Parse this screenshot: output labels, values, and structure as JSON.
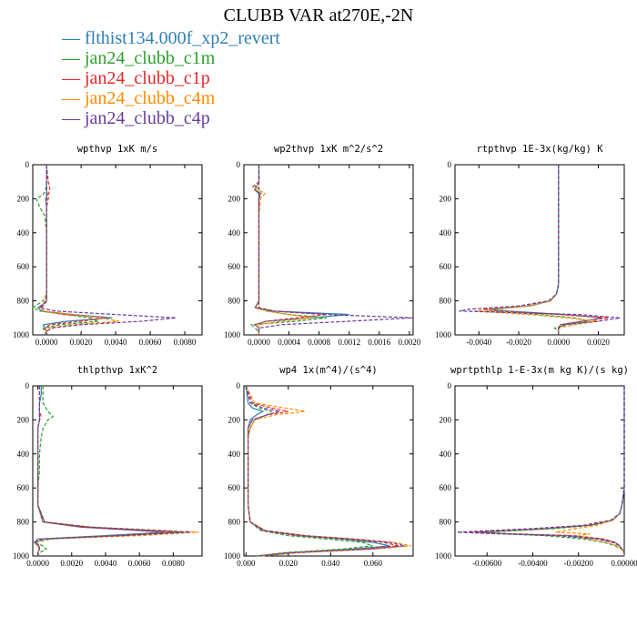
{
  "title": "CLUBB VAR at270E,-2N",
  "legend": [
    {
      "label": "flthist134.000f_xp2_revert",
      "color": "#2f7fb5"
    },
    {
      "label": "jan24_clubb_c1m",
      "color": "#2ca02c"
    },
    {
      "label": "jan24_clubb_c1p",
      "color": "#e8262a"
    },
    {
      "label": "jan24_clubb_c4m",
      "color": "#ff8c00"
    },
    {
      "label": "jan24_clubb_c4p",
      "color": "#6a3d9a"
    }
  ],
  "chart_data": [
    {
      "type": "line",
      "title": "wpthvp  1xK m/s",
      "xlim": [
        -0.0008,
        0.009
      ],
      "ylim": [
        1000,
        0
      ],
      "xticks": [
        "0.0000",
        "0.0020",
        "0.0040",
        "0.0060",
        "0.0080"
      ],
      "yticks": [
        "0",
        "200",
        "400",
        "600",
        "800",
        "1000"
      ],
      "y": [
        0,
        100,
        150,
        175,
        200,
        250,
        300,
        400,
        500,
        600,
        700,
        760,
        800,
        820,
        840,
        860,
        880,
        900,
        920,
        940,
        960,
        980,
        1000
      ],
      "series": [
        {
          "color": "#2f7fb5",
          "solid": true,
          "values": [
            0,
            0,
            0,
            5e-05,
            -5e-05,
            0,
            0,
            0,
            0,
            0,
            0,
            0,
            0,
            -0.0002,
            -0.0005,
            -0.0003,
            0.0015,
            0.0038,
            0.0012,
            -0.0002,
            -0.0001,
            0,
            0
          ]
        },
        {
          "color": "#2ca02c",
          "solid": false,
          "values": [
            0,
            0,
            -5e-05,
            -0.0002,
            -0.0006,
            -0.0004,
            -0.0001,
            0,
            0,
            0,
            0,
            0,
            -0.0002,
            -0.0005,
            -0.0008,
            -0.0004,
            0.0012,
            0.0025,
            0.003,
            0.0008,
            -0.0002,
            -0.0001,
            0
          ]
        },
        {
          "color": "#e8262a",
          "solid": false,
          "values": [
            0,
            0.0001,
            0.0002,
            0.0001,
            0.0001,
            0,
            0,
            0,
            0,
            0,
            0,
            0,
            0,
            -0.0001,
            -0.0003,
            -0.0002,
            0.001,
            0.0034,
            0.002,
            0.0002,
            -0.0001,
            0,
            0
          ]
        },
        {
          "color": "#ff8c00",
          "solid": false,
          "values": [
            0,
            0,
            0,
            0,
            0,
            0,
            0,
            0,
            0,
            0,
            0,
            0,
            -0.0001,
            -0.0002,
            -0.0004,
            -0.0002,
            0.0015,
            0.0031,
            0.0042,
            0.0015,
            0.0001,
            0,
            0
          ]
        },
        {
          "color": "#6a3d9a",
          "solid": false,
          "values": [
            0,
            0,
            0,
            0,
            0,
            0,
            0,
            0,
            0,
            0,
            0,
            0,
            0,
            -0.0002,
            -0.0004,
            0.0005,
            0.004,
            0.0075,
            0.0055,
            0.002,
            0.0003,
            0,
            0
          ]
        }
      ]
    },
    {
      "type": "line",
      "title": "wp2thvp  1xK m^2/s^2",
      "xlim": [
        -0.0002,
        0.00205
      ],
      "ylim": [
        1000,
        0
      ],
      "xticks": [
        "0.0000",
        "0.0004",
        "0.0008",
        "0.0012",
        "0.0016",
        "0.0020"
      ],
      "yticks": [
        "0",
        "200",
        "400",
        "600",
        "800",
        "1000"
      ],
      "y": [
        0,
        100,
        130,
        150,
        170,
        200,
        300,
        400,
        500,
        600,
        700,
        800,
        840,
        860,
        880,
        900,
        920,
        940,
        960,
        980,
        1000
      ],
      "series": [
        {
          "color": "#2f7fb5",
          "solid": true,
          "values": [
            0,
            0,
            -3e-05,
            -5e-05,
            0,
            0,
            0,
            0,
            0,
            0,
            0,
            0,
            -5e-05,
            0.0002,
            0.0012,
            0.0007,
            0.0001,
            -5e-05,
            0,
            0,
            0
          ]
        },
        {
          "color": "#2ca02c",
          "solid": false,
          "values": [
            0,
            0,
            -5e-05,
            -3e-05,
            2e-05,
            0,
            0,
            0,
            0,
            0,
            0,
            0,
            -5e-05,
            0.0001,
            0.0004,
            0.0009,
            0.0005,
            -0.0001,
            -5e-05,
            0,
            0
          ]
        },
        {
          "color": "#e8262a",
          "solid": false,
          "values": [
            0,
            0,
            -8e-05,
            -5e-05,
            3e-05,
            0,
            0,
            0,
            0,
            0,
            0,
            0,
            -5e-05,
            0.00015,
            0.0009,
            0.0005,
            0.0001,
            -5e-05,
            0,
            0,
            0
          ]
        },
        {
          "color": "#ff8c00",
          "solid": false,
          "values": [
            0,
            0,
            -3e-05,
            0,
            8e-05,
            2e-05,
            0,
            0,
            0,
            0,
            0,
            0,
            0,
            0.0001,
            0.0004,
            0.0007,
            0.0003,
            0,
            0,
            0,
            0
          ]
        },
        {
          "color": "#6a3d9a",
          "solid": false,
          "values": [
            0,
            0,
            0,
            0,
            0,
            0,
            0,
            0,
            0,
            0,
            0,
            0,
            0,
            0.0002,
            0.0009,
            0.00205,
            0.0012,
            0.0003,
            0,
            0,
            0
          ]
        }
      ]
    },
    {
      "type": "line",
      "title": "rtpthvp  1E-3x(kg/kg) K",
      "xlim": [
        -0.0052,
        0.0033
      ],
      "ylim": [
        1000,
        0
      ],
      "xticks": [
        "-0.0040",
        "-0.0020",
        "0.0000",
        "0.0020"
      ],
      "yticks": [
        "0",
        "200",
        "400",
        "600",
        "800",
        "1000"
      ],
      "y": [
        0,
        200,
        400,
        600,
        700,
        760,
        800,
        830,
        850,
        860,
        880,
        900,
        920,
        940,
        960,
        980,
        1000
      ],
      "series": [
        {
          "color": "#2f7fb5",
          "solid": true,
          "values": [
            0,
            0,
            0,
            0,
            0,
            -0.0001,
            -0.0004,
            -0.0015,
            -0.0035,
            -0.0025,
            0.0003,
            0.0022,
            0.0012,
            0.0001,
            0,
            0,
            0
          ]
        },
        {
          "color": "#2ca02c",
          "solid": false,
          "values": [
            0,
            0,
            0,
            0,
            0,
            -0.0001,
            -0.0004,
            -0.0014,
            -0.0032,
            -0.0036,
            -0.001,
            0.0008,
            0.0015,
            0.0004,
            -0.0002,
            0,
            0
          ]
        },
        {
          "color": "#e8262a",
          "solid": false,
          "values": [
            0,
            0,
            0,
            0,
            0,
            -0.0001,
            -0.0004,
            -0.0016,
            -0.0038,
            -0.003,
            0,
            0.0025,
            0.0012,
            0.0001,
            0,
            0,
            0
          ]
        },
        {
          "color": "#ff8c00",
          "solid": false,
          "values": [
            0,
            0,
            0,
            0,
            0,
            -0.0001,
            -0.0004,
            -0.0015,
            -0.0033,
            -0.0042,
            -0.0015,
            0.0005,
            0.002,
            0.0008,
            0,
            0,
            0
          ]
        },
        {
          "color": "#6a3d9a",
          "solid": false,
          "values": [
            0,
            0,
            0,
            0,
            0,
            -0.0001,
            -0.0005,
            -0.002,
            -0.0045,
            -0.005,
            0.001,
            0.0031,
            0.002,
            0.0003,
            0,
            0,
            0
          ]
        }
      ]
    },
    {
      "type": "line",
      "title": "thlpthvp  1xK^2",
      "xlim": [
        -0.0003,
        0.0097
      ],
      "ylim": [
        1000,
        0
      ],
      "xticks": [
        "0.0000",
        "0.0020",
        "0.0040",
        "0.0060",
        "0.0080"
      ],
      "yticks": [
        "0",
        "200",
        "400",
        "600",
        "800",
        "1000"
      ],
      "y": [
        0,
        50,
        100,
        150,
        180,
        200,
        250,
        300,
        400,
        500,
        600,
        700,
        800,
        830,
        860,
        880,
        900,
        920,
        940,
        960,
        980,
        1000
      ],
      "series": [
        {
          "color": "#2f7fb5",
          "solid": true,
          "values": [
            0.0002,
            0.0002,
            0.0001,
            0.0001,
            0.0001,
            0.0001,
            0,
            0,
            0,
            0,
            0,
            0,
            0.0003,
            0.0025,
            0.0075,
            0.004,
            0,
            -0.0002,
            0,
            0.0001,
            0,
            0
          ]
        },
        {
          "color": "#2ca02c",
          "solid": false,
          "values": [
            0.0003,
            0.0003,
            0.0003,
            0.0006,
            0.0009,
            0.0006,
            0.0003,
            0.0002,
            0.0001,
            0.0001,
            0,
            0,
            0.0004,
            0.003,
            0.0085,
            0.005,
            0.0008,
            -0.0002,
            0.0003,
            0.0005,
            0.0001,
            0
          ]
        },
        {
          "color": "#e8262a",
          "solid": false,
          "values": [
            0.0001,
            0.0001,
            0.0001,
            0.0001,
            0.0002,
            0.0001,
            0,
            0,
            0,
            0,
            0,
            0,
            0.0003,
            0.0025,
            0.008,
            0.0045,
            0.0002,
            -0.0002,
            0.0001,
            0.0001,
            0,
            0
          ]
        },
        {
          "color": "#ff8c00",
          "solid": false,
          "values": [
            0.0001,
            0.0001,
            0.0001,
            0.0001,
            0.0001,
            0.0001,
            0,
            0,
            0,
            0,
            0,
            0,
            0.0004,
            0.0032,
            0.0095,
            0.006,
            0.0005,
            -0.0002,
            0,
            0.0001,
            0,
            0
          ]
        },
        {
          "color": "#6a3d9a",
          "solid": false,
          "values": [
            0.0001,
            0.0001,
            0.0001,
            0.0001,
            0.0001,
            0.0001,
            0,
            0,
            0,
            0,
            0,
            0,
            0.0004,
            0.003,
            0.009,
            0.005,
            0.0003,
            -0.0002,
            0.0001,
            0.0001,
            0,
            0
          ]
        }
      ]
    },
    {
      "type": "line",
      "title": "wp4  1x(m^4)/(s^4)",
      "xlim": [
        -0.001,
        0.079
      ],
      "ylim": [
        1000,
        0
      ],
      "xticks": [
        "0.000",
        "0.020",
        "0.040",
        "0.060"
      ],
      "yticks": [
        "0",
        "200",
        "400",
        "600",
        "800",
        "1000"
      ],
      "y": [
        0,
        100,
        130,
        150,
        170,
        200,
        250,
        300,
        400,
        500,
        600,
        620,
        650,
        700,
        800,
        850,
        880,
        900,
        920,
        940,
        960,
        980,
        1000
      ],
      "series": [
        {
          "color": "#2f7fb5",
          "solid": true,
          "values": [
            0,
            0.001,
            0.003,
            0.008,
            0.005,
            0.002,
            0.001,
            0.001,
            0.001,
            0.001,
            0.001,
            0.001,
            0.001,
            0.001,
            0.002,
            0.008,
            0.025,
            0.045,
            0.06,
            0.068,
            0.05,
            0.02,
            0.005
          ]
        },
        {
          "color": "#2ca02c",
          "solid": false,
          "values": [
            0,
            0.002,
            0.006,
            0.012,
            0.01,
            0.004,
            0.002,
            0.001,
            0.001,
            0.001,
            0.001,
            0.001,
            0.001,
            0.001,
            0.002,
            0.007,
            0.02,
            0.038,
            0.055,
            0.06,
            0.045,
            0.018,
            0.005
          ]
        },
        {
          "color": "#e8262a",
          "solid": false,
          "values": [
            0,
            0.003,
            0.012,
            0.02,
            0.01,
            0.003,
            0.001,
            0.001,
            0.001,
            0.001,
            0.001,
            0.001,
            0.001,
            0.001,
            0.002,
            0.008,
            0.025,
            0.048,
            0.065,
            0.072,
            0.055,
            0.022,
            0.006
          ]
        },
        {
          "color": "#ff8c00",
          "solid": false,
          "values": [
            0,
            0.004,
            0.018,
            0.028,
            0.014,
            0.004,
            0.002,
            0.001,
            0.001,
            0.001,
            0.001,
            0.001,
            0.001,
            0.001,
            0.002,
            0.009,
            0.028,
            0.052,
            0.07,
            0.078,
            0.06,
            0.025,
            0.007
          ]
        },
        {
          "color": "#6a3d9a",
          "solid": false,
          "values": [
            0,
            0.002,
            0.008,
            0.016,
            0.01,
            0.003,
            0.001,
            0.001,
            0.001,
            0.001,
            0.001,
            0.001,
            0.001,
            0.001,
            0.002,
            0.009,
            0.028,
            0.05,
            0.068,
            0.075,
            0.058,
            0.024,
            0.006
          ]
        }
      ]
    },
    {
      "type": "line",
      "title": "wprtpthlp  1-E-3x(m kg K)/(s kg)",
      "xlim": [
        -0.0074,
        0.0
      ],
      "ylim": [
        1000,
        0
      ],
      "xticks": [
        "-0.00600",
        "-0.00400",
        "-0.00200",
        "0.00000"
      ],
      "yticks": [
        "0",
        "200",
        "400",
        "600",
        "800",
        "1000"
      ],
      "y": [
        0,
        200,
        400,
        600,
        700,
        750,
        790,
        820,
        840,
        860,
        870,
        880,
        900,
        920,
        940,
        960,
        980,
        1000
      ],
      "series": [
        {
          "color": "#2f7fb5",
          "solid": true,
          "values": [
            0,
            0,
            0,
            0,
            -0.0001,
            -0.0002,
            -0.0005,
            -0.0015,
            -0.0035,
            -0.0065,
            -0.005,
            -0.0025,
            -0.001,
            -0.0004,
            -0.0002,
            -0.0001,
            0,
            0
          ]
        },
        {
          "color": "#2ca02c",
          "solid": false,
          "values": [
            0,
            0,
            0,
            0,
            -0.0001,
            -0.0002,
            -0.0005,
            -0.0014,
            -0.0032,
            -0.006,
            -0.0052,
            -0.0035,
            -0.0018,
            -0.0009,
            -0.0004,
            -0.0001,
            0,
            0
          ]
        },
        {
          "color": "#e8262a",
          "solid": false,
          "values": [
            0,
            0,
            0,
            0,
            -0.0001,
            -0.0002,
            -0.0005,
            -0.0016,
            -0.0038,
            -0.0068,
            -0.0048,
            -0.0022,
            -0.0009,
            -0.0004,
            -0.0002,
            -0.0001,
            0,
            0
          ]
        },
        {
          "color": "#ff8c00",
          "solid": false,
          "values": [
            0,
            0,
            0,
            0,
            -0.0001,
            -0.0002,
            -0.0005,
            -0.0012,
            -0.0022,
            -0.003,
            -0.0015,
            -0.002,
            -0.0016,
            -0.0008,
            -0.0003,
            -0.0001,
            0,
            0
          ]
        },
        {
          "color": "#6a3d9a",
          "solid": false,
          "values": [
            0,
            0,
            0,
            0,
            -0.0001,
            -0.0002,
            -0.0006,
            -0.0018,
            -0.0042,
            -0.0073,
            -0.0055,
            -0.003,
            -0.0012,
            -0.0005,
            -0.0002,
            -0.0001,
            0,
            0
          ]
        }
      ]
    }
  ]
}
